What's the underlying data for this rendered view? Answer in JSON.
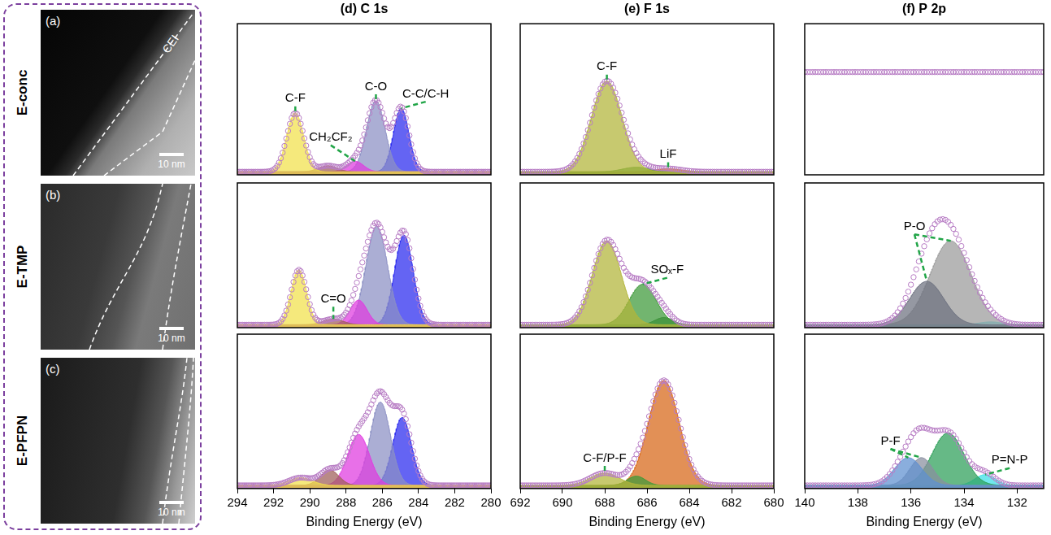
{
  "tem_images": [
    {
      "letter": "(a)",
      "sample": "E-conc",
      "label": "CEI",
      "scale_bar": "10 nm"
    },
    {
      "letter": "(b)",
      "sample": "E-TMP",
      "scale_bar": "10 nm"
    },
    {
      "letter": "(c)",
      "sample": "E-PFPN",
      "scale_bar": "10 nm"
    }
  ],
  "chart_data": [
    {
      "type": "line",
      "title": "(d) C 1s",
      "xlim": [
        294,
        280
      ],
      "ylim": [
        0,
        1
      ],
      "grid": false,
      "tick_labels": false,
      "background": 0.02,
      "envelope": {
        "color": "#b77cc4",
        "marker": "circle"
      },
      "peaks": [
        {
          "color": "#f2e14c",
          "center": 290.8,
          "height": 0.39,
          "fwhm": 1.1
        },
        {
          "color": "#a0605a",
          "center": 289.0,
          "height": 0.04,
          "fwhm": 1.2
        },
        {
          "color": "#e03ce0",
          "center": 287.5,
          "height": 0.07,
          "fwhm": 1.1
        },
        {
          "color": "#8c90c4",
          "center": 286.35,
          "height": 0.47,
          "fwhm": 1.2
        },
        {
          "color": "#2b2bef",
          "center": 284.95,
          "height": 0.42,
          "fwhm": 1.0
        }
      ],
      "annotations": [
        {
          "text": "C-F",
          "x": [
            290.8
          ]
        },
        {
          "text": "CH₂CF₂",
          "x": [
            287.5
          ]
        },
        {
          "text": "C-O",
          "x": [
            286.35
          ]
        },
        {
          "text": "C-C/C-H",
          "x": [
            284.95
          ]
        }
      ]
    },
    {
      "type": "line",
      "xlim": [
        294,
        280
      ],
      "ylim": [
        0,
        1
      ],
      "grid": false,
      "tick_labels": false,
      "background": 0.02,
      "envelope": {
        "color": "#b77cc4",
        "marker": "circle"
      },
      "peaks": [
        {
          "color": "#f2e14c",
          "center": 290.6,
          "height": 0.38,
          "fwhm": 1.0
        },
        {
          "color": "#a0605a",
          "center": 288.7,
          "height": 0.04,
          "fwhm": 1.3
        },
        {
          "color": "#e03ce0",
          "center": 287.3,
          "height": 0.17,
          "fwhm": 1.1
        },
        {
          "color": "#8c90c4",
          "center": 286.3,
          "height": 0.68,
          "fwhm": 1.4
        },
        {
          "color": "#2b2bef",
          "center": 284.8,
          "height": 0.62,
          "fwhm": 1.2
        }
      ],
      "annotations": [
        {
          "text": "C=O",
          "x": [
            288.7
          ]
        }
      ]
    },
    {
      "type": "line",
      "x_label": "Binding Energy (eV)",
      "xlim": [
        294,
        280
      ],
      "xticks": [
        294,
        292,
        290,
        288,
        286,
        284,
        282,
        280
      ],
      "ylim": [
        0,
        1
      ],
      "grid": false,
      "tick_labels": "x",
      "background": 0.02,
      "envelope": {
        "color": "#b77cc4",
        "marker": "circle"
      },
      "peaks": [
        {
          "color": "#f2e14c",
          "center": 290.5,
          "height": 0.05,
          "fwhm": 1.5
        },
        {
          "color": "#a0605a",
          "center": 288.9,
          "height": 0.1,
          "fwhm": 1.2
        },
        {
          "color": "#e03ce0",
          "center": 287.3,
          "height": 0.33,
          "fwhm": 1.4
        },
        {
          "color": "#8c90c4",
          "center": 286.1,
          "height": 0.54,
          "fwhm": 1.3
        },
        {
          "color": "#2b2bef",
          "center": 284.9,
          "height": 0.44,
          "fwhm": 1.2
        }
      ],
      "annotations": []
    },
    {
      "type": "line",
      "title": "(e) F 1s",
      "xlim": [
        692,
        680
      ],
      "ylim": [
        0,
        1
      ],
      "grid": false,
      "tick_labels": false,
      "background": 0.02,
      "envelope": {
        "color": "#b77cc4",
        "marker": "circle"
      },
      "peaks": [
        {
          "color": "#b2b63a",
          "center": 687.9,
          "height": 0.6,
          "fwhm": 1.7
        },
        {
          "color": "#3f9a3a",
          "center": 686.5,
          "height": 0.03,
          "fwhm": 1.5
        },
        {
          "color": "#d86818",
          "center": 685.0,
          "height": 0.02,
          "fwhm": 1.5
        }
      ],
      "annotations": [
        {
          "text": "C-F",
          "x": [
            687.9
          ]
        },
        {
          "text": "LiF",
          "x": [
            685.0
          ]
        }
      ]
    },
    {
      "type": "line",
      "xlim": [
        692,
        680
      ],
      "ylim": [
        0,
        1
      ],
      "grid": false,
      "tick_labels": false,
      "background": 0.02,
      "envelope": {
        "color": "#b77cc4",
        "marker": "circle"
      },
      "peaks": [
        {
          "color": "#b2b63a",
          "center": 687.9,
          "height": 0.58,
          "fwhm": 1.6
        },
        {
          "color": "#3f9a3a",
          "center": 686.2,
          "height": 0.28,
          "fwhm": 1.5
        },
        {
          "color": "#2f7a2f",
          "center": 685.2,
          "height": 0.05,
          "fwhm": 1.0
        }
      ],
      "annotations": [
        {
          "text": "SOₓ-F",
          "x": [
            686.2
          ]
        }
      ]
    },
    {
      "type": "line",
      "x_label": "Binding Energy (eV)",
      "xlim": [
        692,
        680
      ],
      "xticks": [
        692,
        690,
        688,
        686,
        684,
        682,
        680
      ],
      "ylim": [
        0,
        1
      ],
      "grid": false,
      "tick_labels": "x",
      "background": 0.02,
      "envelope": {
        "color": "#b77cc4",
        "marker": "circle"
      },
      "peaks": [
        {
          "color": "#b2b63a",
          "center": 688.0,
          "height": 0.08,
          "fwhm": 1.6
        },
        {
          "color": "#3f9a3a",
          "center": 686.5,
          "height": 0.06,
          "fwhm": 1.0
        },
        {
          "color": "#d86818",
          "center": 685.2,
          "height": 0.68,
          "fwhm": 1.7
        }
      ],
      "annotations": [
        {
          "text": "C-F/P-F",
          "x": [
            688.0
          ]
        }
      ]
    },
    {
      "type": "line",
      "title": "(f) P 2p",
      "xlim": [
        140,
        131
      ],
      "ylim": [
        0,
        1
      ],
      "grid": false,
      "tick_labels": false,
      "background": 0.68,
      "envelope": {
        "color": "#b77cc4",
        "marker": "circle"
      },
      "peaks": [],
      "annotations": []
    },
    {
      "type": "line",
      "xlim": [
        140,
        131
      ],
      "ylim": [
        0,
        1
      ],
      "grid": false,
      "tick_labels": false,
      "background": 0.02,
      "envelope": {
        "color": "#b77cc4",
        "marker": "circle"
      },
      "peaks": [
        {
          "color": "#6e7280",
          "center": 135.4,
          "height": 0.3,
          "fwhm": 1.5
        },
        {
          "color": "#9c9c9c",
          "center": 134.5,
          "height": 0.58,
          "fwhm": 1.8
        },
        {
          "color": "#3ee0e6",
          "center": 133.0,
          "height": 0.02,
          "fwhm": 1.0
        }
      ],
      "annotations": [
        {
          "text": "P-O",
          "x": [
            135.4,
            134.5
          ]
        }
      ]
    },
    {
      "type": "line",
      "x_label": "Binding Energy (eV)",
      "xlim": [
        140,
        131
      ],
      "xticks": [
        140,
        138,
        136,
        134,
        132
      ],
      "ylim": [
        0,
        1
      ],
      "grid": false,
      "tick_labels": "x",
      "background": 0.02,
      "envelope": {
        "color": "#b77cc4",
        "marker": "circle"
      },
      "peaks": [
        {
          "color": "#6090d0",
          "center": 136.1,
          "height": 0.18,
          "fwhm": 1.2
        },
        {
          "color": "#8a8fa0",
          "center": 135.6,
          "height": 0.18,
          "fwhm": 1.0
        },
        {
          "color": "#2fa05a",
          "center": 134.6,
          "height": 0.34,
          "fwhm": 1.4
        },
        {
          "color": "#3ee0e6",
          "center": 133.2,
          "height": 0.07,
          "fwhm": 0.9
        }
      ],
      "annotations": [
        {
          "text": "P-F",
          "x": [
            136.1,
            135.6
          ]
        },
        {
          "text": "P=N-P",
          "x": [
            133.2
          ]
        }
      ]
    }
  ]
}
